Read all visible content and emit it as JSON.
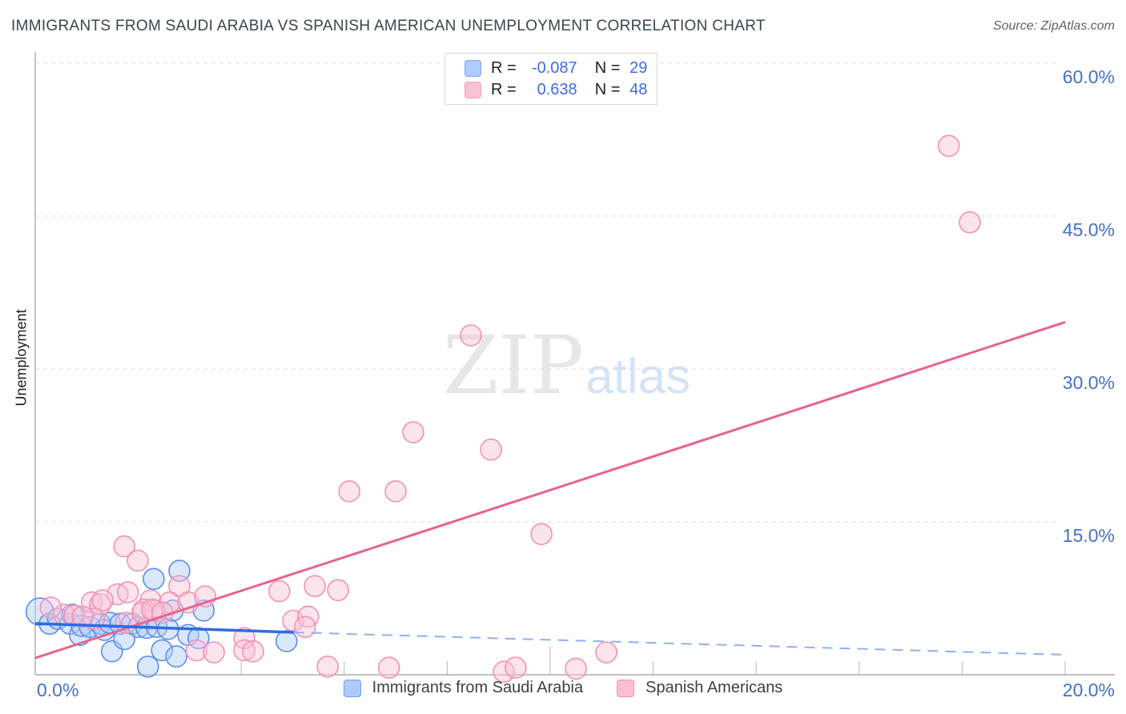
{
  "header": {
    "title": "IMMIGRANTS FROM SAUDI ARABIA VS SPANISH AMERICAN UNEMPLOYMENT CORRELATION CHART",
    "source": "Source: ZipAtlas.com"
  },
  "stats_box": {
    "rows": [
      {
        "r_label": "R =",
        "r_value": "-0.087",
        "n_label": "N =",
        "n_value": "29"
      },
      {
        "r_label": "R =",
        "r_value": "0.638",
        "n_label": "N =",
        "n_value": "48"
      }
    ]
  },
  "axes": {
    "ylabel": "Unemployment",
    "y_tick_labels": [
      "60.0%",
      "45.0%",
      "30.0%",
      "15.0%"
    ],
    "x_min_label": "0.0%",
    "x_max_label": "20.0%"
  },
  "watermark": {
    "zip": "ZIP",
    "atlas": "atlas"
  },
  "bottom_legend": [
    {
      "label": "Immigrants from Saudi Arabia"
    },
    {
      "label": "Spanish Americans"
    }
  ],
  "colors": {
    "blue_stroke": "#5b8def",
    "blue_fill": "rgba(174,203,250,0.45)",
    "pink_stroke": "#f291b4",
    "pink_fill": "rgba(248,195,214,0.45)",
    "blue_trend": "#2e6be0",
    "blue_trend_dash": "#8fb1f0",
    "pink_trend": "#e8638c",
    "axis_label_blue": "#4472c4",
    "grid": "#dcdcdc",
    "axis": "#9e9e9e",
    "tick": "#b8b8b8"
  },
  "chart_data": {
    "type": "scatter",
    "title": "Immigrants from Saudi Arabia vs Spanish American Unemployment",
    "xlabel": "Immigrants from Saudi Arabia (%)",
    "ylabel": "Unemployment (%)",
    "x_range": [
      0,
      20
    ],
    "y_range": [
      0,
      62
    ],
    "y_gridlines_pct": [
      15,
      30,
      45,
      60
    ],
    "x_ticks_pct": [
      2,
      4,
      6,
      8,
      10,
      12,
      14,
      16,
      18,
      20
    ],
    "grid": "horizontal-dashed",
    "legend_position": "bottom-center",
    "series": [
      {
        "name": "Immigrants from Saudi Arabia",
        "R": -0.087,
        "N": 29,
        "stroke": "#5b8def",
        "fill": "rgba(174,203,250,0.45)",
        "points": [
          [
            0.09,
            6.2,
            17
          ],
          [
            0.28,
            5.0
          ],
          [
            0.44,
            5.5
          ],
          [
            0.68,
            5.0
          ],
          [
            0.72,
            5.9
          ],
          [
            0.87,
            3.9
          ],
          [
            0.9,
            4.8
          ],
          [
            1.06,
            4.7
          ],
          [
            1.26,
            5.0
          ],
          [
            1.34,
            4.4
          ],
          [
            1.45,
            5.1
          ],
          [
            1.49,
            2.3
          ],
          [
            1.65,
            5.0
          ],
          [
            1.73,
            3.5
          ],
          [
            1.88,
            5.0
          ],
          [
            2.01,
            4.7
          ],
          [
            2.16,
            4.6
          ],
          [
            2.19,
            0.8
          ],
          [
            2.3,
            9.4
          ],
          [
            2.36,
            4.7
          ],
          [
            2.46,
            2.4
          ],
          [
            2.58,
            4.5
          ],
          [
            2.67,
            6.3
          ],
          [
            2.74,
            1.8
          ],
          [
            2.8,
            10.2
          ],
          [
            2.97,
            3.9
          ],
          [
            3.17,
            3.6
          ],
          [
            3.27,
            6.3
          ],
          [
            4.88,
            3.3
          ]
        ]
      },
      {
        "name": "Spanish Americans",
        "R": 0.638,
        "N": 48,
        "stroke": "#f291b4",
        "fill": "rgba(248,195,214,0.45)",
        "points": [
          [
            17.74,
            51.9
          ],
          [
            18.15,
            44.4
          ],
          [
            8.46,
            33.3
          ],
          [
            7.34,
            23.8
          ],
          [
            8.85,
            22.1
          ],
          [
            6.1,
            18.0
          ],
          [
            7.0,
            18.0
          ],
          [
            9.83,
            13.8
          ],
          [
            1.73,
            12.6
          ],
          [
            1.99,
            11.2
          ],
          [
            4.74,
            8.2
          ],
          [
            5.43,
            8.7
          ],
          [
            5.88,
            8.3
          ],
          [
            2.8,
            8.7
          ],
          [
            2.24,
            7.3
          ],
          [
            2.61,
            7.1
          ],
          [
            2.97,
            7.1
          ],
          [
            3.3,
            7.7
          ],
          [
            2.11,
            6.4
          ],
          [
            2.32,
            6.3
          ],
          [
            5.01,
            5.3
          ],
          [
            5.3,
            5.7
          ],
          [
            5.24,
            4.7
          ],
          [
            3.13,
            2.4
          ],
          [
            3.47,
            2.2
          ],
          [
            4.06,
            3.6
          ],
          [
            4.06,
            2.4
          ],
          [
            4.23,
            2.3
          ],
          [
            5.68,
            0.8
          ],
          [
            6.87,
            0.7
          ],
          [
            9.1,
            0.3
          ],
          [
            9.33,
            0.7
          ],
          [
            10.5,
            0.6
          ],
          [
            11.09,
            2.2
          ],
          [
            1.1,
            7.1
          ],
          [
            1.26,
            6.9
          ],
          [
            0.56,
            5.9
          ],
          [
            0.76,
            5.8
          ],
          [
            1.14,
            5.5
          ],
          [
            1.76,
            5.1
          ],
          [
            1.6,
            7.9
          ],
          [
            1.8,
            8.1
          ],
          [
            2.08,
            6.1
          ],
          [
            2.27,
            6.4
          ],
          [
            2.47,
            6.1
          ],
          [
            1.31,
            7.3
          ],
          [
            0.92,
            5.7
          ],
          [
            0.3,
            6.6
          ]
        ]
      }
    ],
    "trend_lines": [
      {
        "series": "Immigrants from Saudi Arabia",
        "solid_from": [
          0,
          5.03
        ],
        "solid_to": [
          5.02,
          4.16
        ],
        "dashed_to": [
          20,
          1.96
        ],
        "color": "#2e6be0",
        "dash_color": "#8fb1f0"
      },
      {
        "series": "Spanish Americans",
        "solid_from": [
          0,
          1.65
        ],
        "solid_to": [
          20,
          34.6
        ],
        "color": "#e8638c"
      }
    ]
  }
}
